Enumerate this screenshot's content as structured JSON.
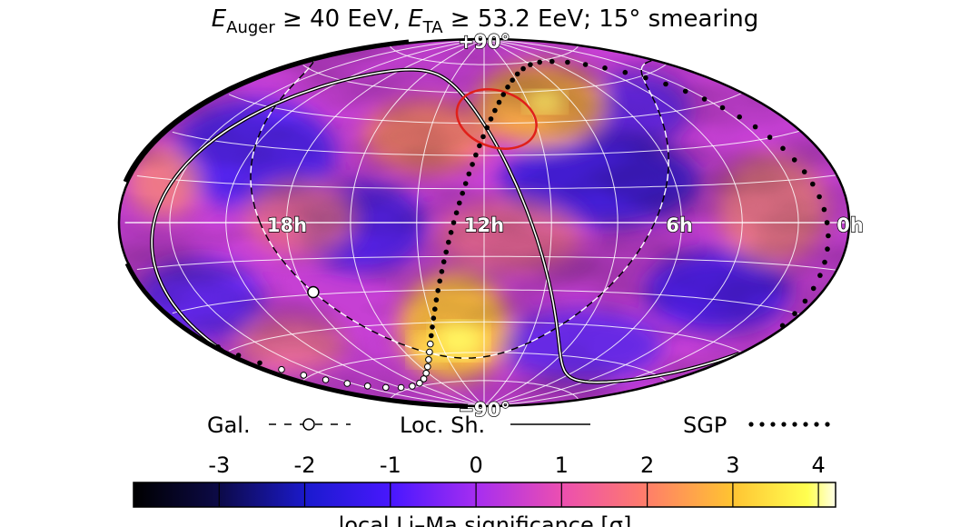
{
  "chart_data": {
    "type": "heatmap",
    "projection": "hammer-aitoff (equatorial, RA increasing to the left)",
    "title": {
      "prefix_var": "E",
      "prefix_sub": "Auger",
      "part1": " ≥ 40 EeV, ",
      "var2": "E",
      "var2_sub": "TA",
      "part2": " ≥ 53.2 EeV; 15° smearing"
    },
    "ra_labels": [
      {
        "text": "18h",
        "ra_hours": 18
      },
      {
        "text": "12h",
        "ra_hours": 12
      },
      {
        "text": "6h",
        "ra_hours": 6
      },
      {
        "text": "0h",
        "ra_hours": 0
      }
    ],
    "dec_labels": [
      {
        "text": "+90°",
        "dec_deg": 90
      },
      {
        "text": "−90°",
        "dec_deg": -90
      }
    ],
    "legend": {
      "galactic": "Gal.",
      "local_sheet": "Loc. Sh.",
      "sgp": "SGP"
    },
    "colorbar": {
      "label": "local Li–Ma significance [σ]",
      "ticks": [
        "-3",
        "-2",
        "-1",
        "0",
        "1",
        "2",
        "3",
        "4"
      ],
      "tick_values": [
        -3,
        -2,
        -1,
        0,
        1,
        2,
        3,
        4
      ],
      "range": [
        -4,
        4.2
      ],
      "colormap": "gnuplot2-like (black → blue → purple → pink → orange → yellow → white)"
    },
    "hotspot_ellipse": {
      "ra_hours": 11.5,
      "dec_deg": 47,
      "color": "#e0201a"
    },
    "galactic_center_marker": {
      "ra_hours": 17.76,
      "dec_deg": -29
    }
  }
}
